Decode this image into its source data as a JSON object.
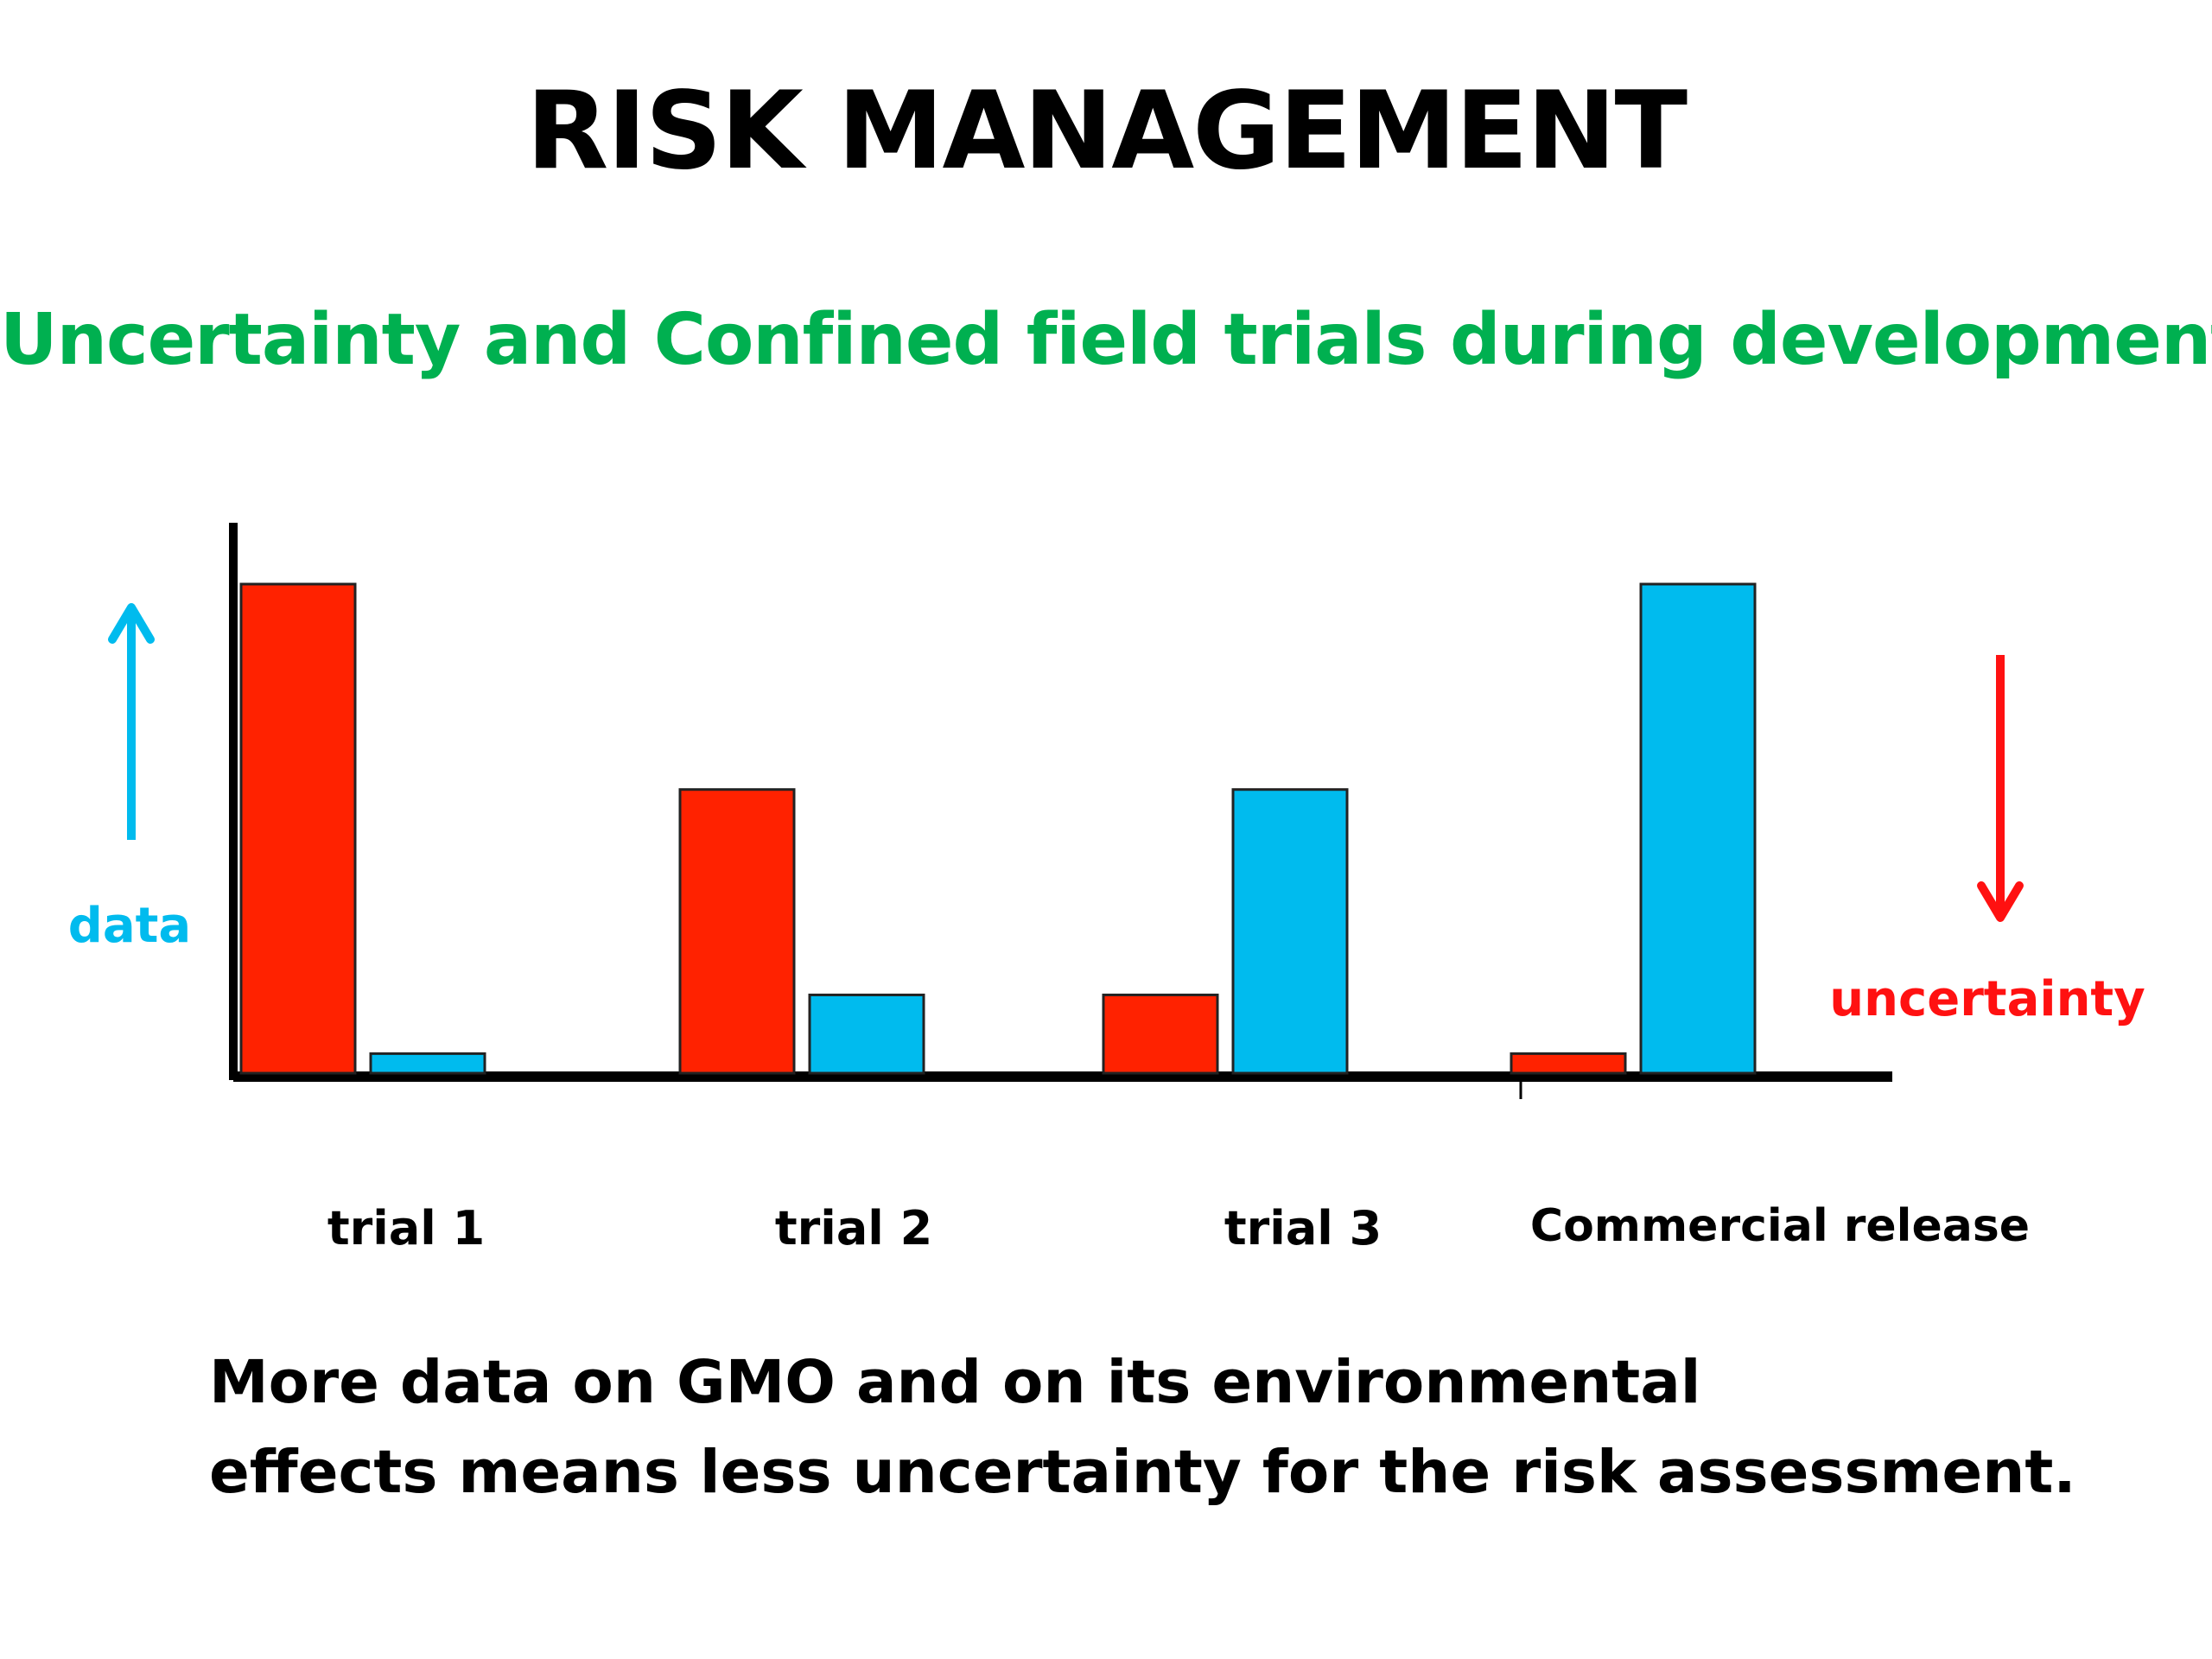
{
  "slide": {
    "title": "RISK MANAGEMENT",
    "subtitle": "Uncertainty and Confined field trials during development:"
  },
  "caption": {
    "line1": "More data on GMO and on its environmental",
    "line2": "effects means less uncertainty for the risk assessment."
  },
  "colors": {
    "uncertainty": "#ff2200",
    "data": "#00bbee",
    "subtitle": "#00b050",
    "axis": "#000000"
  },
  "chart_data": {
    "type": "bar",
    "categories": [
      "trial 1",
      "trial 2",
      "trial 3",
      "Commercial release"
    ],
    "series": [
      {
        "name": "uncertainty",
        "values": [
          100,
          58,
          16,
          4
        ]
      },
      {
        "name": "data",
        "values": [
          4,
          16,
          58,
          100
        ]
      }
    ],
    "ylim": [
      0,
      100
    ],
    "grid": false,
    "annotations": {
      "data_label": "data",
      "data_arrow": "up",
      "uncertainty_label": "uncertainty",
      "uncertainty_arrow": "down"
    }
  }
}
